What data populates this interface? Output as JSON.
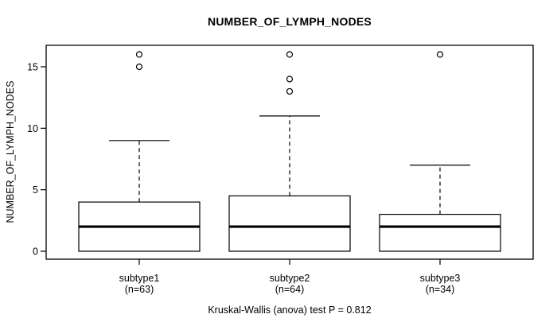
{
  "figure": {
    "title": "NUMBER_OF_LYMPH_NODES",
    "ylabel": "NUMBER_OF_LYMPH_NODES",
    "footer": "Kruskal-Wallis (anova) test P = 0.812"
  },
  "chart_data": {
    "type": "boxplot",
    "title": "NUMBER_OF_LYMPH_NODES",
    "ylabel": "NUMBER_OF_LYMPH_NODES",
    "xlabel": "",
    "ylim": [
      0,
      16
    ],
    "yticks": [
      0,
      5,
      10,
      15
    ],
    "grid": false,
    "legend": "none",
    "whisker_line_style": "dashed",
    "annotation": "Kruskal-Wallis (anova) test P = 0.812",
    "categories": [
      "subtype1",
      "subtype2",
      "subtype3"
    ],
    "category_sublabels": [
      "(n=63)",
      "(n=64)",
      "(n=34)"
    ],
    "series": [
      {
        "name": "subtype1",
        "n": 63,
        "whisker_low": 0,
        "q1": 0,
        "median": 2,
        "q3": 4,
        "whisker_high": 9,
        "outliers": [
          15,
          16
        ]
      },
      {
        "name": "subtype2",
        "n": 64,
        "whisker_low": 0,
        "q1": 0,
        "median": 2,
        "q3": 4.5,
        "whisker_high": 11,
        "outliers": [
          13,
          14,
          16
        ]
      },
      {
        "name": "subtype3",
        "n": 34,
        "whisker_low": 0,
        "q1": 0,
        "median": 2,
        "q3": 3,
        "whisker_high": 7,
        "outliers": [
          16
        ]
      }
    ],
    "colors": {
      "line": "#000000",
      "box_fill": "#ffffff",
      "background": "#ffffff"
    }
  }
}
